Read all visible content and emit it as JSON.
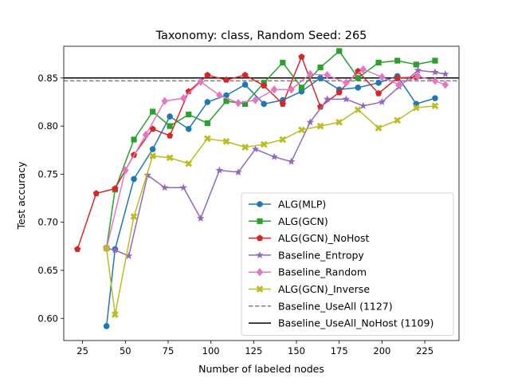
{
  "chart_data": {
    "type": "line",
    "title": "Taxonomy: class, Random Seed: 265",
    "xlabel": "Number of labeled nodes",
    "ylabel": "Test accuracy",
    "xlim": [
      14,
      245
    ],
    "ylim": [
      0.577,
      0.883
    ],
    "xticks": [
      25,
      50,
      75,
      100,
      125,
      150,
      175,
      200,
      225
    ],
    "yticks": [
      0.6,
      0.65,
      0.7,
      0.75,
      0.8,
      0.85
    ],
    "xtick_labels": [
      "25",
      "50",
      "75",
      "100",
      "125",
      "150",
      "175",
      "200",
      "225"
    ],
    "ytick_labels": [
      "0.60",
      "0.65",
      "0.70",
      "0.75",
      "0.80",
      "0.85"
    ],
    "grid": false,
    "legend_position": "lower-right",
    "series": [
      {
        "name": "ALG(MLP)",
        "color": "#1f77b4",
        "marker": "circle",
        "x": [
          39,
          44,
          55,
          66,
          76,
          87,
          98,
          109,
          120,
          131,
          142,
          153,
          164,
          175,
          186,
          198,
          209,
          220,
          231
        ],
        "y": [
          0.592,
          0.672,
          0.745,
          0.776,
          0.81,
          0.797,
          0.825,
          0.832,
          0.843,
          0.823,
          0.827,
          0.836,
          0.85,
          0.838,
          0.84,
          0.845,
          0.852,
          0.823,
          0.829
        ]
      },
      {
        "name": "ALG(GCN)",
        "color": "#2ca02c",
        "marker": "square",
        "x": [
          39,
          44,
          55,
          66,
          76,
          87,
          98,
          109,
          120,
          131,
          142,
          153,
          164,
          175,
          186,
          198,
          209,
          220,
          231
        ],
        "y": [
          0.673,
          0.734,
          0.786,
          0.815,
          0.8,
          0.812,
          0.803,
          0.826,
          0.823,
          0.845,
          0.866,
          0.84,
          0.861,
          0.878,
          0.85,
          0.866,
          0.868,
          0.864,
          0.868
        ]
      },
      {
        "name": "ALG(GCN)_NoHost",
        "color": "#d62728",
        "marker": "pentagon",
        "x": [
          22,
          33,
          44,
          55,
          66,
          76,
          87,
          98,
          109,
          120,
          131,
          142,
          153,
          164,
          175,
          186,
          198,
          209,
          220
        ],
        "y": [
          0.672,
          0.73,
          0.735,
          0.77,
          0.797,
          0.79,
          0.836,
          0.853,
          0.848,
          0.853,
          0.842,
          0.823,
          0.872,
          0.82,
          0.835,
          0.857,
          0.834,
          0.85,
          0.851
        ]
      },
      {
        "name": "Baseline_Entropy",
        "color": "#9467bd",
        "marker": "star",
        "x": [
          39,
          44,
          52,
          63,
          73,
          84,
          94,
          105,
          116,
          126,
          137,
          147,
          158,
          168,
          179,
          189,
          200,
          210,
          221,
          231,
          237
        ],
        "y": [
          0.673,
          0.671,
          0.665,
          0.749,
          0.736,
          0.736,
          0.704,
          0.754,
          0.752,
          0.776,
          0.768,
          0.763,
          0.804,
          0.828,
          0.828,
          0.821,
          0.825,
          0.841,
          0.858,
          0.856,
          0.854
        ]
      },
      {
        "name": "Baseline_Random",
        "color": "#e377c2",
        "marker": "diamond",
        "x": [
          39,
          50,
          62,
          73,
          84,
          94,
          105,
          116,
          126,
          137,
          147,
          158,
          168,
          179,
          189,
          200,
          210,
          221,
          231,
          237
        ],
        "y": [
          0.673,
          0.754,
          0.791,
          0.826,
          0.829,
          0.846,
          0.832,
          0.824,
          0.827,
          0.838,
          0.838,
          0.854,
          0.853,
          0.845,
          0.859,
          0.851,
          0.843,
          0.852,
          0.847,
          0.843
        ]
      },
      {
        "name": "ALG(GCN)_Inverse",
        "color": "#bcbd22",
        "marker": "x",
        "x": [
          39,
          44,
          55,
          66,
          76,
          87,
          98,
          109,
          120,
          131,
          142,
          153,
          164,
          175,
          186,
          198,
          209,
          220,
          231
        ],
        "y": [
          0.673,
          0.604,
          0.706,
          0.769,
          0.767,
          0.761,
          0.787,
          0.784,
          0.778,
          0.781,
          0.786,
          0.796,
          0.8,
          0.804,
          0.817,
          0.798,
          0.806,
          0.819,
          0.821
        ]
      }
    ],
    "hlines": [
      {
        "name": "Baseline_UseAll (1127)",
        "color": "#7f7f7f",
        "style": "dashed",
        "y": 0.847
      },
      {
        "name": "Baseline_UseAll_NoHost (1109)",
        "color": "#000000",
        "style": "solid",
        "y": 0.85
      }
    ]
  }
}
